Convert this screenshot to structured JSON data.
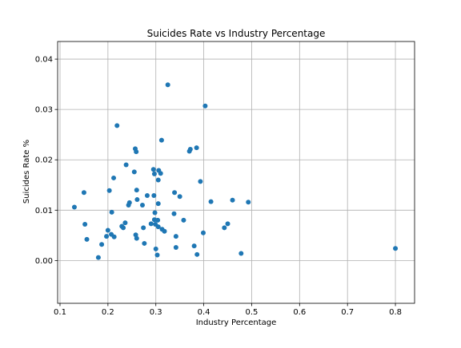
{
  "chart_data": {
    "type": "scatter",
    "title": "Suicides Rate vs Industry Percentage",
    "xlabel": "Industry Percentage",
    "ylabel": "Suicides Rate %",
    "xlim": [
      0.095,
      0.84
    ],
    "ylim": [
      -0.0085,
      0.0435
    ],
    "xticks": [
      0.1,
      0.2,
      0.3,
      0.4,
      0.5,
      0.6,
      0.7,
      0.8
    ],
    "xtick_labels": [
      "0.1",
      "0.2",
      "0.3",
      "0.4",
      "0.5",
      "0.6",
      "0.7",
      "0.8"
    ],
    "yticks": [
      0.0,
      0.01,
      0.02,
      0.03,
      0.04
    ],
    "ytick_labels": [
      "0.00",
      "0.01",
      "0.02",
      "0.03",
      "0.04"
    ],
    "grid": true,
    "marker_color": "#1f77b4",
    "series": [
      {
        "points": [
          [
            0.13,
            0.0106
          ],
          [
            0.15,
            0.0135
          ],
          [
            0.152,
            0.0072
          ],
          [
            0.156,
            0.0042
          ],
          [
            0.18,
            0.0006
          ],
          [
            0.187,
            0.0032
          ],
          [
            0.197,
            0.0048
          ],
          [
            0.2,
            0.006
          ],
          [
            0.203,
            0.0139
          ],
          [
            0.207,
            0.0052
          ],
          [
            0.208,
            0.0096
          ],
          [
            0.212,
            0.0164
          ],
          [
            0.213,
            0.0047
          ],
          [
            0.219,
            0.0268
          ],
          [
            0.229,
            0.0068
          ],
          [
            0.232,
            0.0065
          ],
          [
            0.236,
            0.0075
          ],
          [
            0.238,
            0.019
          ],
          [
            0.243,
            0.011
          ],
          [
            0.245,
            0.0115
          ],
          [
            0.255,
            0.0176
          ],
          [
            0.257,
            0.0222
          ],
          [
            0.258,
            0.0051
          ],
          [
            0.259,
            0.0216
          ],
          [
            0.26,
            0.0044
          ],
          [
            0.26,
            0.014
          ],
          [
            0.261,
            0.0121
          ],
          [
            0.272,
            0.011
          ],
          [
            0.274,
            0.0065
          ],
          [
            0.276,
            0.0034
          ],
          [
            0.282,
            0.0129
          ],
          [
            0.29,
            0.0073
          ],
          [
            0.295,
            0.0181
          ],
          [
            0.296,
            0.0129
          ],
          [
            0.297,
            0.0172
          ],
          [
            0.297,
            0.0081
          ],
          [
            0.298,
            0.0095
          ],
          [
            0.299,
            0.0072
          ],
          [
            0.3,
            0.0023
          ],
          [
            0.303,
            0.0011
          ],
          [
            0.304,
            0.008
          ],
          [
            0.305,
            0.0067
          ],
          [
            0.305,
            0.0113
          ],
          [
            0.305,
            0.016
          ],
          [
            0.306,
            0.0179
          ],
          [
            0.31,
            0.0173
          ],
          [
            0.312,
            0.0239
          ],
          [
            0.313,
            0.0062
          ],
          [
            0.318,
            0.0058
          ],
          [
            0.325,
            0.0349
          ],
          [
            0.338,
            0.0093
          ],
          [
            0.339,
            0.0135
          ],
          [
            0.342,
            0.0048
          ],
          [
            0.342,
            0.0026
          ],
          [
            0.35,
            0.0127
          ],
          [
            0.358,
            0.008
          ],
          [
            0.37,
            0.0217
          ],
          [
            0.372,
            0.0221
          ],
          [
            0.38,
            0.0029
          ],
          [
            0.385,
            0.0224
          ],
          [
            0.386,
            0.0012
          ],
          [
            0.393,
            0.0157
          ],
          [
            0.399,
            0.0055
          ],
          [
            0.403,
            0.0307
          ],
          [
            0.415,
            0.0117
          ],
          [
            0.443,
            0.0065
          ],
          [
            0.45,
            0.0073
          ],
          [
            0.46,
            0.012
          ],
          [
            0.478,
            0.0014
          ],
          [
            0.493,
            0.0116
          ],
          [
            0.8,
            0.0024
          ]
        ]
      }
    ]
  }
}
